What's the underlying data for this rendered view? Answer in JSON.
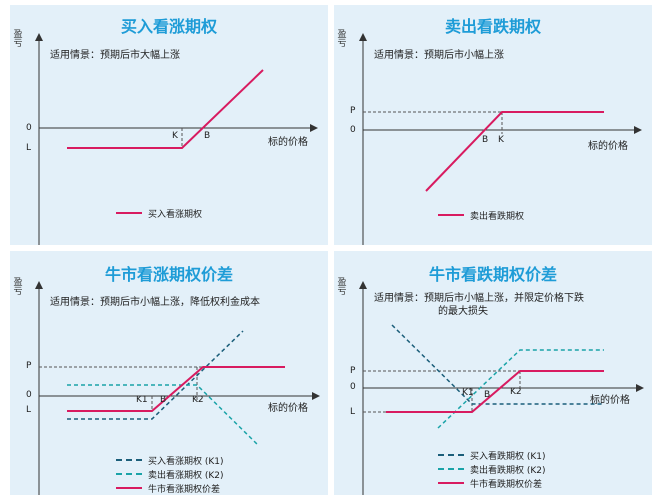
{
  "common": {
    "y_axis_label": "盈亏",
    "x_axis_label": "标的价格",
    "zero": "0"
  },
  "colors": {
    "background": "#e3f0f9",
    "title": "#1e9cd7",
    "main_line": "#d81b60",
    "dash_teal": "#1aa3a8",
    "dash_dark": "#1b5e7a"
  },
  "panels": [
    {
      "title": "买入看涨期权",
      "scenario": "适用情景：预期后市大幅上涨",
      "ticks": {
        "k": "K",
        "b": "B",
        "l": "L"
      },
      "legend": [
        "买入看涨期权"
      ]
    },
    {
      "title": "卖出看跌期权",
      "scenario": "适用情景：预期后市小幅上涨",
      "ticks": {
        "p": "P",
        "b": "B",
        "k": "K"
      },
      "legend": [
        "卖出看跌期权"
      ]
    },
    {
      "title": "牛市看涨期权价差",
      "scenario": "适用情景：预期后市小幅上涨，降低权利金成本",
      "ticks": {
        "p": "P",
        "l": "L",
        "k1": "K1",
        "b": "B",
        "k2": "K2"
      },
      "legend": [
        "买入看涨期权 (K1)",
        "卖出看涨期权 (K2)",
        "牛市看涨期权价差"
      ]
    },
    {
      "title": "牛市看跌期权价差",
      "scenario_line1": "适用情景：预期后市小幅上涨，并限定价格下跌",
      "scenario_line2": "的最大损失",
      "ticks": {
        "p": "P",
        "l": "L",
        "k1": "K1",
        "b": "B",
        "k2": "K2"
      },
      "legend": [
        "买入看跌期权 (K1)",
        "卖出看跌期权 (K2)",
        "牛市看跌期权价差"
      ]
    }
  ]
}
